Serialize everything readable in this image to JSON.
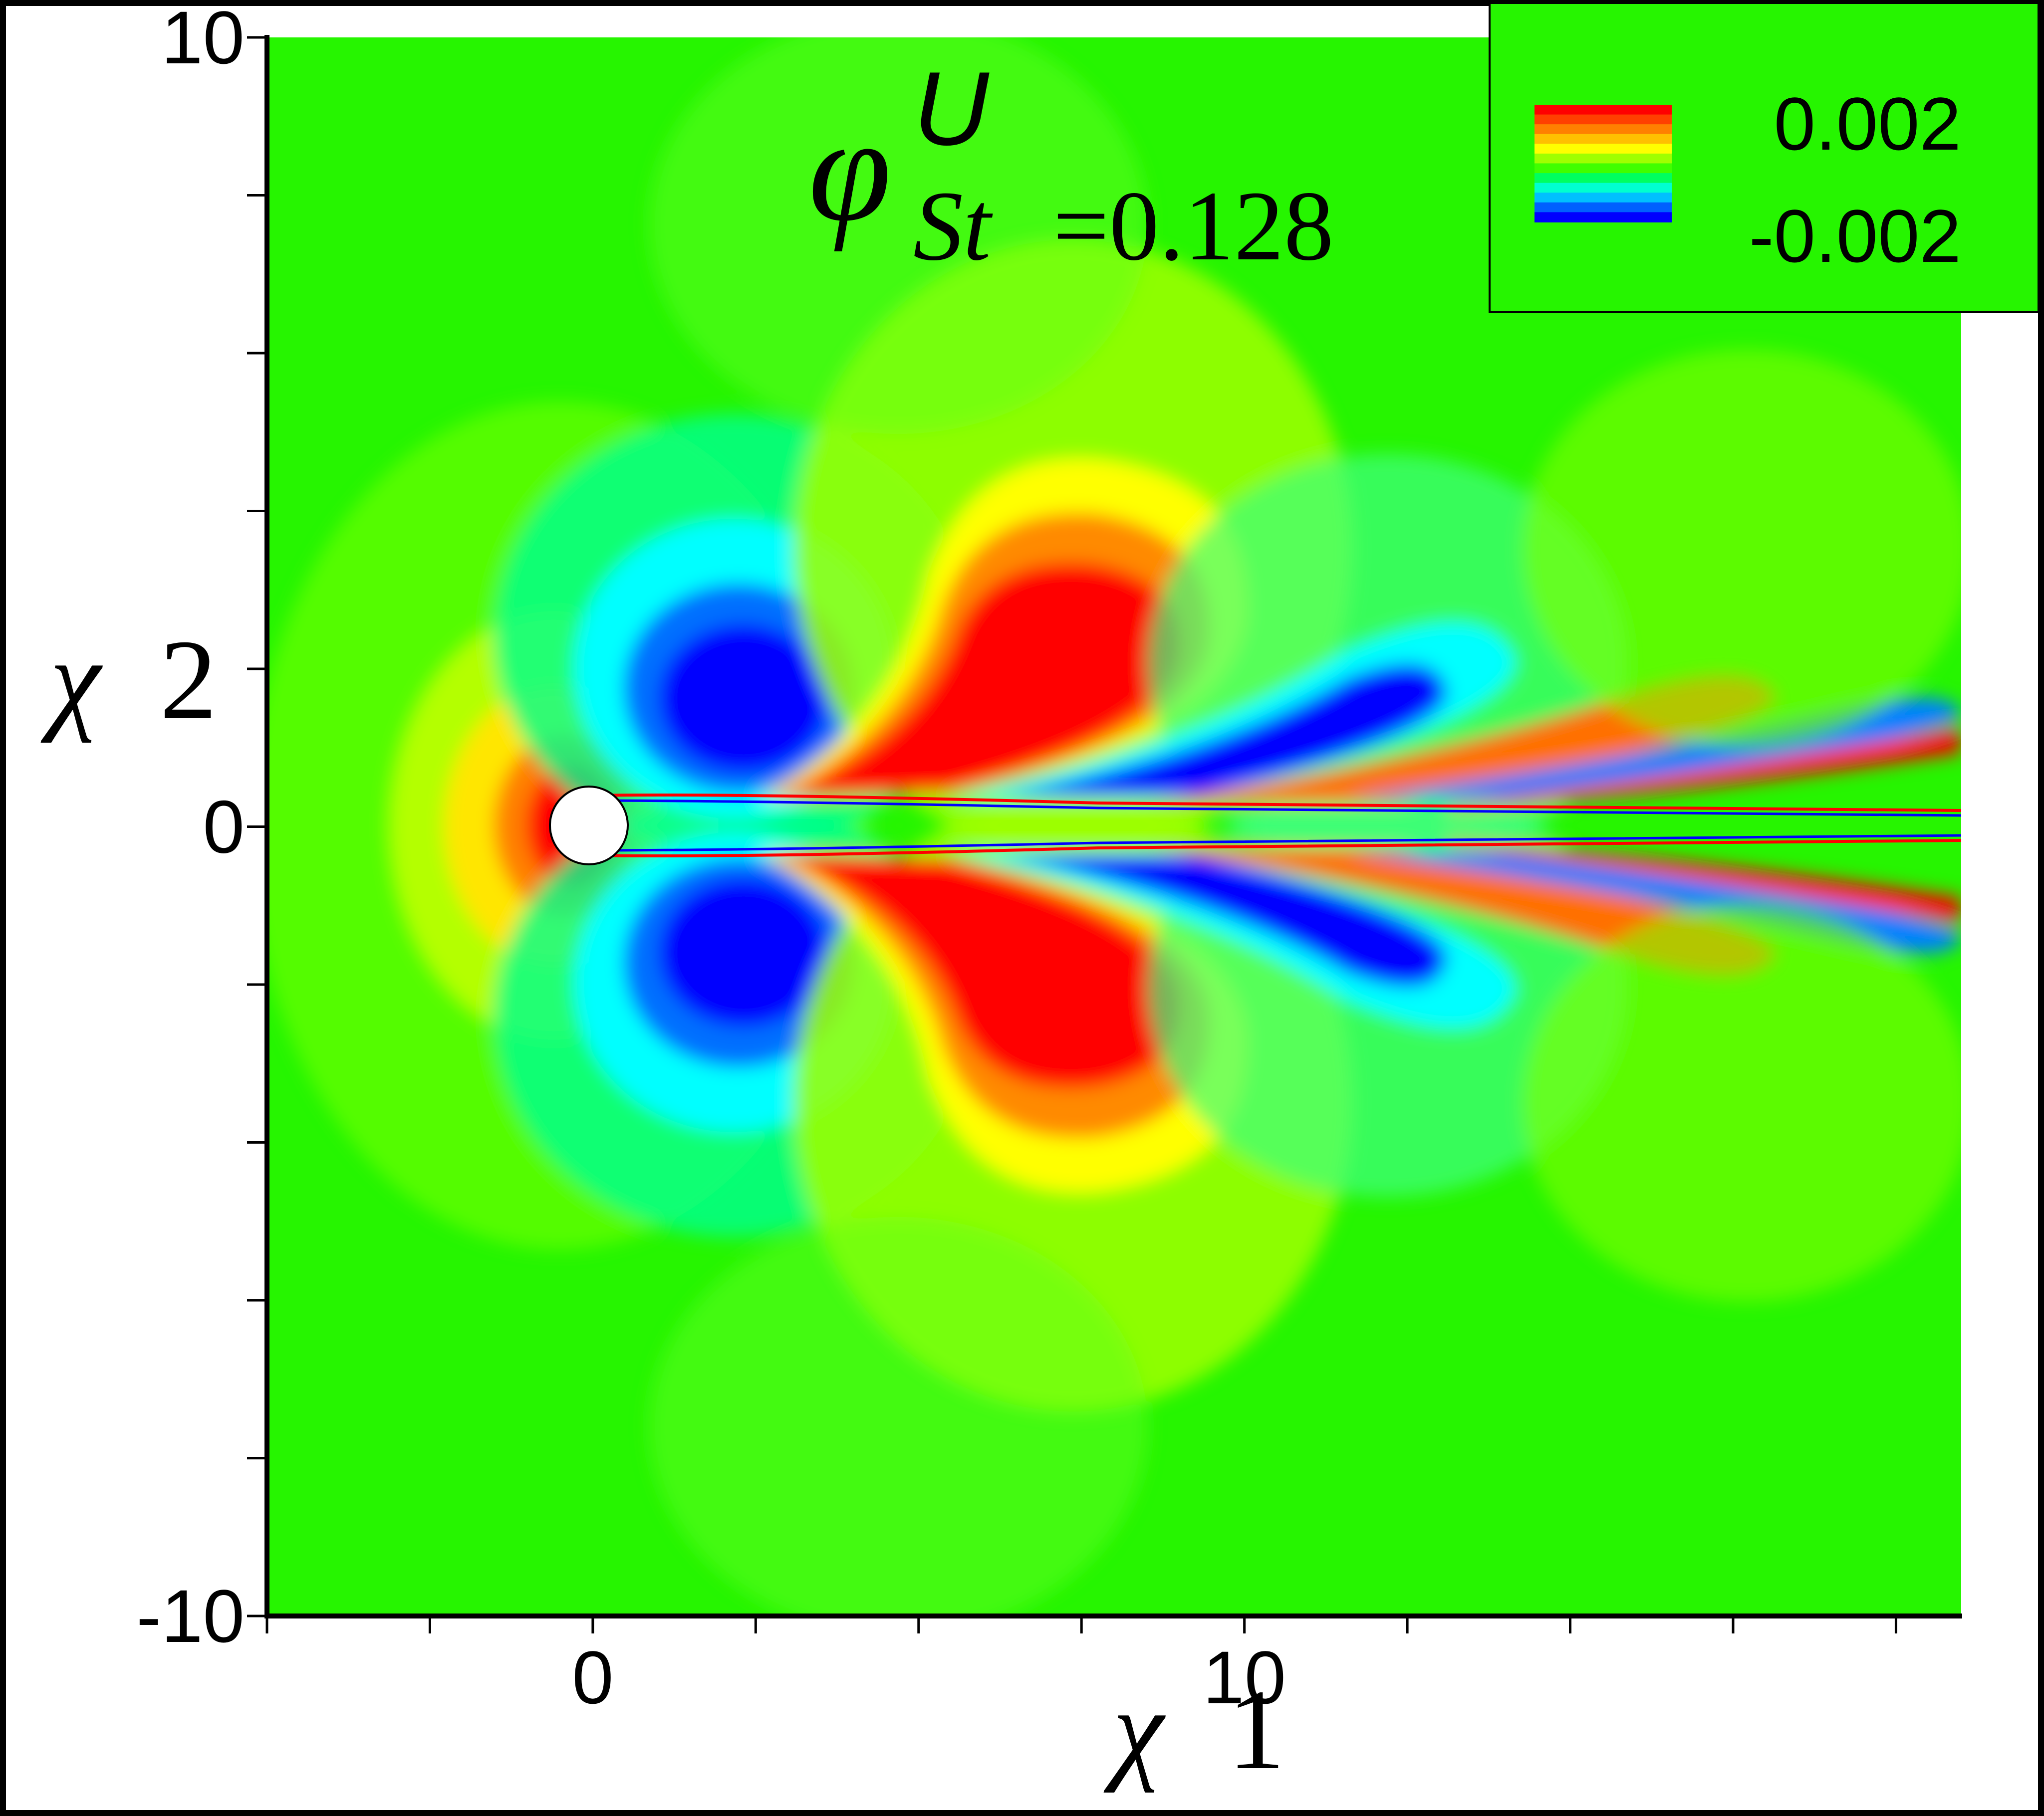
{
  "chart_data": {
    "type": "heatmap",
    "title": "φ^U_{St=0.128}",
    "title_parts": {
      "symbol": "φ",
      "superscript": "U",
      "subscript_var": "St",
      "subscript_eq": "=0.128"
    },
    "xlabel": "χ1",
    "ylabel": "χ2",
    "xlabel_parts": {
      "symbol": "χ",
      "index": "1"
    },
    "ylabel_parts": {
      "symbol": "χ",
      "index": "2"
    },
    "xlim": [
      -5,
      21
    ],
    "ylim": [
      -10,
      10
    ],
    "x_tick_labels": [
      {
        "value": 0,
        "label": "0"
      },
      {
        "value": 10,
        "label": "10"
      }
    ],
    "y_tick_labels": [
      {
        "value": 10,
        "label": "10"
      },
      {
        "value": 0,
        "label": "0"
      },
      {
        "value": -10,
        "label": "-10"
      }
    ],
    "x_minor_ticks": [
      -5,
      -2.5,
      0,
      2.5,
      5,
      7.5,
      10,
      12.5,
      15,
      17.5,
      20
    ],
    "y_minor_ticks": [
      10,
      8,
      6,
      4,
      2,
      0,
      -2,
      -4,
      -6,
      -8,
      -10
    ],
    "colorbar": {
      "max_label": "0.002",
      "min_label": "-0.002",
      "min": -0.002,
      "max": 0.002,
      "placement": "top-right",
      "colors": [
        "#0000ff",
        "#0060ff",
        "#00c0ff",
        "#00ffd0",
        "#00ff60",
        "#40ff00",
        "#a0ff00",
        "#ffff00",
        "#ffc000",
        "#ff8000",
        "#ff4000",
        "#ff0000"
      ]
    },
    "cylinder": {
      "center": [
        0,
        0
      ],
      "radius": 0.5
    },
    "background_color": "#26f500",
    "grid": false
  }
}
